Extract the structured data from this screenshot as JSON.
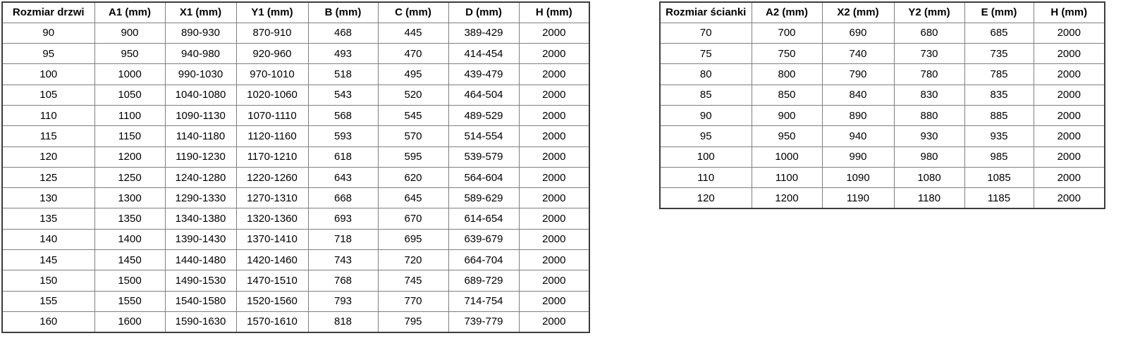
{
  "tables": [
    {
      "title": "doors-spec-table",
      "headers": [
        "Rozmiar drzwi",
        "A1 (mm)",
        "X1 (mm)",
        "Y1 (mm)",
        "B (mm)",
        "C (mm)",
        "D (mm)",
        "H (mm)"
      ],
      "rows": [
        [
          "90",
          "900",
          "890-930",
          "870-910",
          "468",
          "445",
          "389-429",
          "2000"
        ],
        [
          "95",
          "950",
          "940-980",
          "920-960",
          "493",
          "470",
          "414-454",
          "2000"
        ],
        [
          "100",
          "1000",
          "990-1030",
          "970-1010",
          "518",
          "495",
          "439-479",
          "2000"
        ],
        [
          "105",
          "1050",
          "1040-1080",
          "1020-1060",
          "543",
          "520",
          "464-504",
          "2000"
        ],
        [
          "110",
          "1100",
          "1090-1130",
          "1070-1110",
          "568",
          "545",
          "489-529",
          "2000"
        ],
        [
          "115",
          "1150",
          "1140-1180",
          "1120-1160",
          "593",
          "570",
          "514-554",
          "2000"
        ],
        [
          "120",
          "1200",
          "1190-1230",
          "1170-1210",
          "618",
          "595",
          "539-579",
          "2000"
        ],
        [
          "125",
          "1250",
          "1240-1280",
          "1220-1260",
          "643",
          "620",
          "564-604",
          "2000"
        ],
        [
          "130",
          "1300",
          "1290-1330",
          "1270-1310",
          "668",
          "645",
          "589-629",
          "2000"
        ],
        [
          "135",
          "1350",
          "1340-1380",
          "1320-1360",
          "693",
          "670",
          "614-654",
          "2000"
        ],
        [
          "140",
          "1400",
          "1390-1430",
          "1370-1410",
          "718",
          "695",
          "639-679",
          "2000"
        ],
        [
          "145",
          "1450",
          "1440-1480",
          "1420-1460",
          "743",
          "720",
          "664-704",
          "2000"
        ],
        [
          "150",
          "1500",
          "1490-1530",
          "1470-1510",
          "768",
          "745",
          "689-729",
          "2000"
        ],
        [
          "155",
          "1550",
          "1540-1580",
          "1520-1560",
          "793",
          "770",
          "714-754",
          "2000"
        ],
        [
          "160",
          "1600",
          "1590-1630",
          "1570-1610",
          "818",
          "795",
          "739-779",
          "2000"
        ]
      ]
    },
    {
      "title": "wall-panel-spec-table",
      "headers": [
        "Rozmiar ścianki",
        "A2 (mm)",
        "X2 (mm)",
        "Y2 (mm)",
        "E (mm)",
        "H (mm)"
      ],
      "rows": [
        [
          "70",
          "700",
          "690",
          "680",
          "685",
          "2000"
        ],
        [
          "75",
          "750",
          "740",
          "730",
          "735",
          "2000"
        ],
        [
          "80",
          "800",
          "790",
          "780",
          "785",
          "2000"
        ],
        [
          "85",
          "850",
          "840",
          "830",
          "835",
          "2000"
        ],
        [
          "90",
          "900",
          "890",
          "880",
          "885",
          "2000"
        ],
        [
          "95",
          "950",
          "940",
          "930",
          "935",
          "2000"
        ],
        [
          "100",
          "1000",
          "990",
          "980",
          "985",
          "2000"
        ],
        [
          "110",
          "1100",
          "1090",
          "1080",
          "1085",
          "2000"
        ],
        [
          "120",
          "1200",
          "1190",
          "1180",
          "1185",
          "2000"
        ]
      ]
    }
  ],
  "colors": {
    "border_inner": "#7f7f7f",
    "border_outer": "#3c3c3c",
    "text": "#000000",
    "background": "#ffffff"
  }
}
